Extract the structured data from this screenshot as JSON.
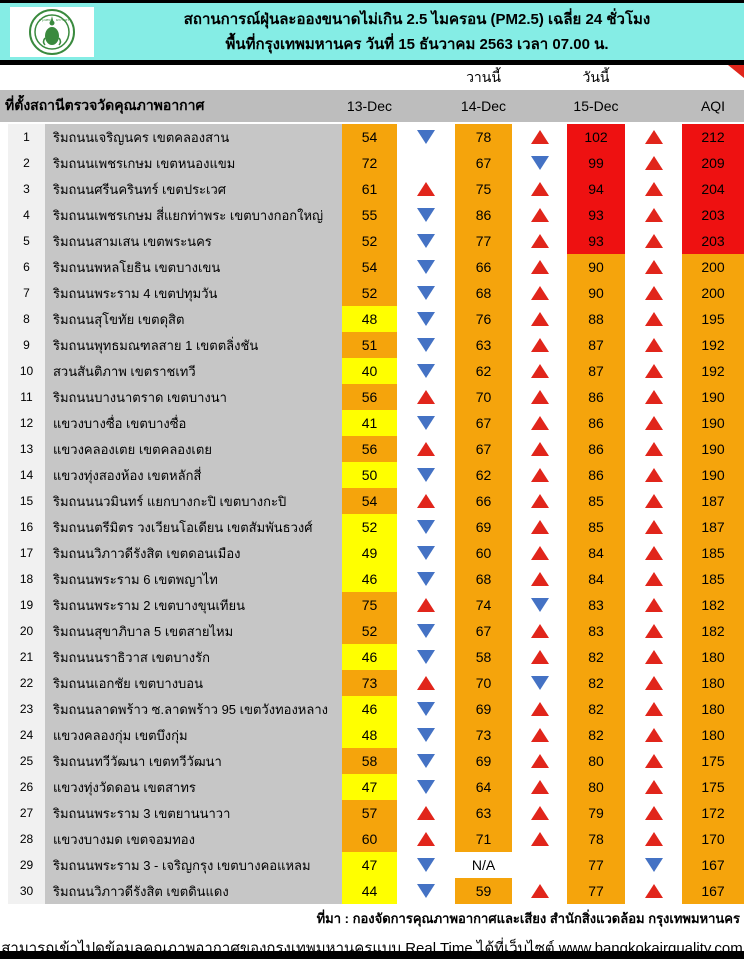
{
  "header": {
    "title_line1": "สถานการณ์ฝุ่นละอองขนาดไม่เกิน 2.5 ไมครอน (PM2.5) เฉลี่ย 24 ชั่วโมง",
    "title_line2": "พื้นที่กรุงเทพมหานคร วันที่ 15 ธันวาคม 2563 เวลา 07.00 น.",
    "logo": "bma-seal-logo"
  },
  "table": {
    "station_header": "ที่ตั้งสถานีตรวจวัดคุณภาพอากาศ",
    "yesterday_label": "วานนี้",
    "today_label": "วันนี้",
    "columns": [
      "13-Dec",
      "14-Dec",
      "15-Dec",
      "AQI"
    ],
    "rows": [
      {
        "no": "1",
        "station": "ริมถนนเจริญนคร เขตคลองสาน",
        "d13": "54",
        "c13": "orange",
        "a1": "down",
        "d14": "78",
        "c14": "orange",
        "a2": "up",
        "d15": "102",
        "c15": "red",
        "a3": "up",
        "aqi": "212",
        "caqi": "red"
      },
      {
        "no": "2",
        "station": "ริมถนนเพชรเกษม เขตหนองแขม",
        "d13": "72",
        "c13": "orange",
        "a1": "",
        "d14": "67",
        "c14": "orange",
        "a2": "down",
        "d15": "99",
        "c15": "red",
        "a3": "up",
        "aqi": "209",
        "caqi": "red"
      },
      {
        "no": "3",
        "station": "ริมถนนศรีนครินทร์ เขตประเวศ",
        "d13": "61",
        "c13": "orange",
        "a1": "up",
        "d14": "75",
        "c14": "orange",
        "a2": "up",
        "d15": "94",
        "c15": "red",
        "a3": "up",
        "aqi": "204",
        "caqi": "red"
      },
      {
        "no": "4",
        "station": "ริมถนนเพชรเกษม สี่แยกท่าพระ เขตบางกอกใหญ่",
        "d13": "55",
        "c13": "orange",
        "a1": "down",
        "d14": "86",
        "c14": "orange",
        "a2": "up",
        "d15": "93",
        "c15": "red",
        "a3": "up",
        "aqi": "203",
        "caqi": "red"
      },
      {
        "no": "5",
        "station": "ริมถนนสามเสน เขตพระนคร",
        "d13": "52",
        "c13": "orange",
        "a1": "down",
        "d14": "77",
        "c14": "orange",
        "a2": "up",
        "d15": "93",
        "c15": "red",
        "a3": "up",
        "aqi": "203",
        "caqi": "red"
      },
      {
        "no": "6",
        "station": "ริมถนนพหลโยธิน เขตบางเขน",
        "d13": "54",
        "c13": "orange",
        "a1": "down",
        "d14": "66",
        "c14": "orange",
        "a2": "up",
        "d15": "90",
        "c15": "orange",
        "a3": "up",
        "aqi": "200",
        "caqi": "orange"
      },
      {
        "no": "7",
        "station": "ริมถนนพระราม 4 เขตปทุมวัน",
        "d13": "52",
        "c13": "orange",
        "a1": "down",
        "d14": "68",
        "c14": "orange",
        "a2": "up",
        "d15": "90",
        "c15": "orange",
        "a3": "up",
        "aqi": "200",
        "caqi": "orange"
      },
      {
        "no": "8",
        "station": "ริมถนนสุโขทัย เขตดุสิต",
        "d13": "48",
        "c13": "yellow",
        "a1": "down",
        "d14": "76",
        "c14": "orange",
        "a2": "up",
        "d15": "88",
        "c15": "orange",
        "a3": "up",
        "aqi": "195",
        "caqi": "orange"
      },
      {
        "no": "9",
        "station": "ริมถนนพุทธมณฑลสาย 1 เขตตลิ่งชัน",
        "d13": "51",
        "c13": "orange",
        "a1": "down",
        "d14": "63",
        "c14": "orange",
        "a2": "up",
        "d15": "87",
        "c15": "orange",
        "a3": "up",
        "aqi": "192",
        "caqi": "orange"
      },
      {
        "no": "10",
        "station": "สวนสันติภาพ เขตราชเทวี",
        "d13": "40",
        "c13": "yellow",
        "a1": "down",
        "d14": "62",
        "c14": "orange",
        "a2": "up",
        "d15": "87",
        "c15": "orange",
        "a3": "up",
        "aqi": "192",
        "caqi": "orange"
      },
      {
        "no": "11",
        "station": "ริมถนนบางนาตราด เขตบางนา",
        "d13": "56",
        "c13": "orange",
        "a1": "up",
        "d14": "70",
        "c14": "orange",
        "a2": "up",
        "d15": "86",
        "c15": "orange",
        "a3": "up",
        "aqi": "190",
        "caqi": "orange"
      },
      {
        "no": "12",
        "station": "แขวงบางซื่อ เขตบางซื่อ",
        "d13": "41",
        "c13": "yellow",
        "a1": "down",
        "d14": "67",
        "c14": "orange",
        "a2": "up",
        "d15": "86",
        "c15": "orange",
        "a3": "up",
        "aqi": "190",
        "caqi": "orange"
      },
      {
        "no": "13",
        "station": "แขวงคลองเตย เขตคลองเตย",
        "d13": "56",
        "c13": "orange",
        "a1": "up",
        "d14": "67",
        "c14": "orange",
        "a2": "up",
        "d15": "86",
        "c15": "orange",
        "a3": "up",
        "aqi": "190",
        "caqi": "orange"
      },
      {
        "no": "14",
        "station": "แขวงทุ่งสองห้อง เขตหลักสี่",
        "d13": "50",
        "c13": "yellow",
        "a1": "down",
        "d14": "62",
        "c14": "orange",
        "a2": "up",
        "d15": "86",
        "c15": "orange",
        "a3": "up",
        "aqi": "190",
        "caqi": "orange"
      },
      {
        "no": "15",
        "station": "ริมถนนนวมินทร์ แยกบางกะปิ เขตบางกะปิ",
        "d13": "54",
        "c13": "orange",
        "a1": "up",
        "d14": "66",
        "c14": "orange",
        "a2": "up",
        "d15": "85",
        "c15": "orange",
        "a3": "up",
        "aqi": "187",
        "caqi": "orange"
      },
      {
        "no": "16",
        "station": "ริมถนนตรีมิตร วงเวียนโอเดียน เขตสัมพันธวงศ์",
        "d13": "52",
        "c13": "yellow",
        "a1": "down",
        "d14": "69",
        "c14": "orange",
        "a2": "up",
        "d15": "85",
        "c15": "orange",
        "a3": "up",
        "aqi": "187",
        "caqi": "orange"
      },
      {
        "no": "17",
        "station": "ริมถนนวิภาวดีรังสิต เขตดอนเมือง",
        "d13": "49",
        "c13": "yellow",
        "a1": "down",
        "d14": "60",
        "c14": "orange",
        "a2": "up",
        "d15": "84",
        "c15": "orange",
        "a3": "up",
        "aqi": "185",
        "caqi": "orange"
      },
      {
        "no": "18",
        "station": "ริมถนนพระราม 6 เขตพญาไท",
        "d13": "46",
        "c13": "yellow",
        "a1": "down",
        "d14": "68",
        "c14": "orange",
        "a2": "up",
        "d15": "84",
        "c15": "orange",
        "a3": "up",
        "aqi": "185",
        "caqi": "orange"
      },
      {
        "no": "19",
        "station": "ริมถนนพระราม 2 เขตบางขุนเทียน",
        "d13": "75",
        "c13": "orange",
        "a1": "up",
        "d14": "74",
        "c14": "orange",
        "a2": "down",
        "d15": "83",
        "c15": "orange",
        "a3": "up",
        "aqi": "182",
        "caqi": "orange"
      },
      {
        "no": "20",
        "station": "ริมถนนสุขาภิบาล 5 เขตสายไหม",
        "d13": "52",
        "c13": "orange",
        "a1": "down",
        "d14": "67",
        "c14": "orange",
        "a2": "up",
        "d15": "83",
        "c15": "orange",
        "a3": "up",
        "aqi": "182",
        "caqi": "orange"
      },
      {
        "no": "21",
        "station": "ริมถนนนราธิวาส เขตบางรัก",
        "d13": "46",
        "c13": "yellow",
        "a1": "down",
        "d14": "58",
        "c14": "orange",
        "a2": "up",
        "d15": "82",
        "c15": "orange",
        "a3": "up",
        "aqi": "180",
        "caqi": "orange"
      },
      {
        "no": "22",
        "station": "ริมถนนเอกชัย เขตบางบอน",
        "d13": "73",
        "c13": "orange",
        "a1": "up",
        "d14": "70",
        "c14": "orange",
        "a2": "down",
        "d15": "82",
        "c15": "orange",
        "a3": "up",
        "aqi": "180",
        "caqi": "orange"
      },
      {
        "no": "23",
        "station": "ริมถนนลาดพร้าว ซ.ลาดพร้าว 95 เขตวังทองหลาง",
        "d13": "46",
        "c13": "yellow",
        "a1": "down",
        "d14": "69",
        "c14": "orange",
        "a2": "up",
        "d15": "82",
        "c15": "orange",
        "a3": "up",
        "aqi": "180",
        "caqi": "orange"
      },
      {
        "no": "24",
        "station": "แขวงคลองกุ่ม เขตบึงกุ่ม",
        "d13": "48",
        "c13": "yellow",
        "a1": "down",
        "d14": "73",
        "c14": "orange",
        "a2": "up",
        "d15": "82",
        "c15": "orange",
        "a3": "up",
        "aqi": "180",
        "caqi": "orange"
      },
      {
        "no": "25",
        "station": "ริมถนนทวีวัฒนา เขตทวีวัฒนา",
        "d13": "58",
        "c13": "orange",
        "a1": "down",
        "d14": "69",
        "c14": "orange",
        "a2": "up",
        "d15": "80",
        "c15": "orange",
        "a3": "up",
        "aqi": "175",
        "caqi": "orange"
      },
      {
        "no": "26",
        "station": "แขวงทุ่งวัดดอน เขตสาทร",
        "d13": "47",
        "c13": "yellow",
        "a1": "down",
        "d14": "64",
        "c14": "orange",
        "a2": "up",
        "d15": "80",
        "c15": "orange",
        "a3": "up",
        "aqi": "175",
        "caqi": "orange"
      },
      {
        "no": "27",
        "station": "ริมถนนพระราม 3 เขตยานนาวา",
        "d13": "57",
        "c13": "orange",
        "a1": "up",
        "d14": "63",
        "c14": "orange",
        "a2": "up",
        "d15": "79",
        "c15": "orange",
        "a3": "up",
        "aqi": "172",
        "caqi": "orange"
      },
      {
        "no": "28",
        "station": "แขวงบางมด เขตจอมทอง",
        "d13": "60",
        "c13": "orange",
        "a1": "up",
        "d14": "71",
        "c14": "orange",
        "a2": "up",
        "d15": "78",
        "c15": "orange",
        "a3": "up",
        "aqi": "170",
        "caqi": "orange"
      },
      {
        "no": "29",
        "station": "ริมถนนพระราม 3 - เจริญกรุง เขตบางคอแหลม",
        "d13": "47",
        "c13": "yellow",
        "a1": "down",
        "d14": "N/A",
        "c14": "white",
        "a2": "",
        "d15": "77",
        "c15": "orange",
        "a3": "down",
        "aqi": "167",
        "caqi": "orange"
      },
      {
        "no": "30",
        "station": "ริมถนนวิภาวดีรังสิต เขตดินแดง",
        "d13": "44",
        "c13": "yellow",
        "a1": "down",
        "d14": "59",
        "c14": "orange",
        "a2": "up",
        "d15": "77",
        "c15": "orange",
        "a3": "up",
        "aqi": "167",
        "caqi": "orange"
      }
    ]
  },
  "footer": {
    "source": "ที่มา : กองจัดการคุณภาพอากาศและเสียง สำนักสิ่งแวดล้อม กรุงเทพมหานคร",
    "realtime": "สามารถเข้าไปดูข้อมูลคุณภาพอากาศของกรุงเทพมหานครแบบ Real Time ได้ที่เว็บไซต์ www.bangkokairquality.com"
  },
  "colors": {
    "banner_bg": "#85EDE5",
    "header_row_bg": "#BDBDBD",
    "station_col_bg": "#C6C6C6",
    "index_col_bg": "#F1F1F1",
    "cell": {
      "orange": "#F5A40C",
      "yellow": "#FFFF00",
      "red": "#EE1111",
      "white": "#FFFFFF"
    },
    "arrow_up": "#E1251B",
    "arrow_down": "#4472C4",
    "logo_green": "#3A8A3E"
  }
}
